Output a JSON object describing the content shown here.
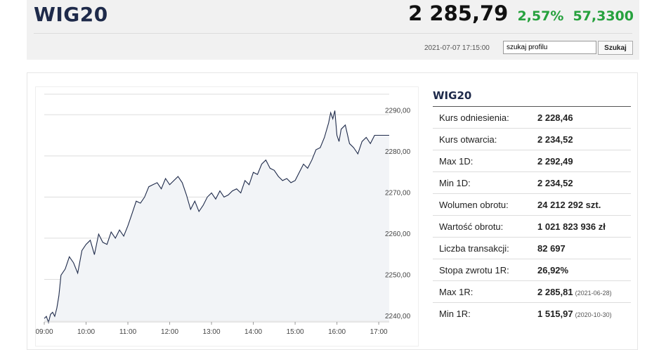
{
  "header": {
    "title": "WIG20",
    "price": "2 285,79",
    "change_percent": "2,57%",
    "change_value": "57,3300",
    "timestamp": "2021-07-07 17:15:00",
    "search_value": "szukaj profilu",
    "search_button": "Szukaj",
    "change_color": "#26a13d"
  },
  "chart_data": {
    "type": "line",
    "x_ticks": [
      "09:00",
      "10:00",
      "11:00",
      "12:00",
      "13:00",
      "14:00",
      "15:00",
      "16:00",
      "17:00"
    ],
    "y_ticks": [
      "2290,00",
      "2280,00",
      "2270,00",
      "2260,00",
      "2250,00",
      "2240,00"
    ],
    "ylim": [
      2240,
      2295
    ],
    "xlim": [
      9.0,
      17.25
    ],
    "grid": true,
    "line_color": "#1e2a4a",
    "x": [
      9.0,
      9.05,
      9.1,
      9.15,
      9.2,
      9.25,
      9.3,
      9.35,
      9.4,
      9.5,
      9.6,
      9.7,
      9.8,
      9.9,
      10.0,
      10.1,
      10.2,
      10.3,
      10.4,
      10.5,
      10.6,
      10.7,
      10.8,
      10.9,
      11.0,
      11.1,
      11.2,
      11.3,
      11.4,
      11.5,
      11.6,
      11.7,
      11.8,
      11.9,
      12.0,
      12.1,
      12.2,
      12.3,
      12.4,
      12.5,
      12.6,
      12.7,
      12.8,
      12.9,
      13.0,
      13.1,
      13.2,
      13.3,
      13.4,
      13.5,
      13.6,
      13.7,
      13.8,
      13.9,
      14.0,
      14.1,
      14.2,
      14.3,
      14.4,
      14.5,
      14.6,
      14.7,
      14.8,
      14.9,
      15.0,
      15.1,
      15.2,
      15.3,
      15.4,
      15.5,
      15.6,
      15.7,
      15.8,
      15.85,
      15.9,
      15.95,
      16.0,
      16.05,
      16.1,
      16.2,
      16.3,
      16.4,
      16.5,
      16.6,
      16.7,
      16.8,
      16.9,
      17.0,
      17.25
    ],
    "values": [
      2240.5,
      2241.0,
      2239.5,
      2241.5,
      2242.0,
      2241.0,
      2243.0,
      2246.0,
      2251.0,
      2252.5,
      2255.5,
      2254.0,
      2251.5,
      2257.0,
      2258.5,
      2259.5,
      2256.0,
      2261.0,
      2259.0,
      2258.5,
      2261.5,
      2260.0,
      2262.0,
      2260.5,
      2263.0,
      2266.0,
      2269.0,
      2268.5,
      2270.0,
      2272.5,
      2273.0,
      2273.5,
      2272.0,
      2274.5,
      2273.0,
      2274.0,
      2275.0,
      2273.5,
      2270.5,
      2267.0,
      2269.0,
      2266.5,
      2268.0,
      2270.0,
      2271.0,
      2269.5,
      2271.5,
      2270.0,
      2270.5,
      2271.5,
      2272.0,
      2271.0,
      2274.0,
      2273.0,
      2276.0,
      2275.5,
      2278.0,
      2279.0,
      2277.0,
      2276.5,
      2275.0,
      2274.0,
      2274.5,
      2273.5,
      2274.0,
      2276.0,
      2278.0,
      2277.0,
      2279.0,
      2281.5,
      2282.0,
      2284.5,
      2288.0,
      2290.5,
      2289.0,
      2291.0,
      2285.0,
      2283.5,
      2286.5,
      2287.5,
      2283.0,
      2282.0,
      2280.5,
      2283.5,
      2284.5,
      2283.0,
      2285.0,
      2285.0,
      2285.0
    ]
  },
  "stats": {
    "title": "WIG20",
    "rows": [
      {
        "label": "Kurs odniesienia:",
        "value": "2 228,46",
        "date": ""
      },
      {
        "label": "Kurs otwarcia:",
        "value": "2 234,52",
        "date": ""
      },
      {
        "label": "Max 1D:",
        "value": "2 292,49",
        "date": ""
      },
      {
        "label": "Min 1D:",
        "value": "2 234,52",
        "date": ""
      },
      {
        "label": "Wolumen obrotu:",
        "value": "24 212 292 szt.",
        "date": ""
      },
      {
        "label": "Wartość obrotu:",
        "value": "1 021 823 936 zł",
        "date": ""
      },
      {
        "label": "Liczba transakcji:",
        "value": "82 697",
        "date": ""
      },
      {
        "label": "Stopa zwrotu 1R:",
        "value": "26,92%",
        "date": ""
      },
      {
        "label": "Max 1R:",
        "value": "2 285,81",
        "date": "(2021-06-28)"
      },
      {
        "label": "Min 1R:",
        "value": "1 515,97",
        "date": "(2020-10-30)"
      }
    ]
  }
}
